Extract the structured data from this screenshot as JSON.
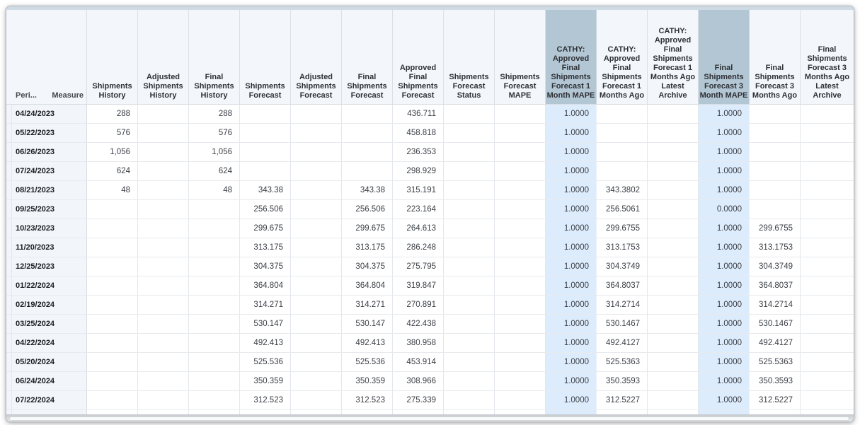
{
  "grid": {
    "corner": {
      "clipped_text": "/",
      "period_label": "Peri...",
      "measure_label": "Measure"
    },
    "columns": [
      {
        "id": "shipments-history",
        "label": "Shipments History",
        "highlight": false
      },
      {
        "id": "adjusted-shipments-history",
        "label": "Adjusted Shipments History",
        "highlight": false
      },
      {
        "id": "final-shipments-history",
        "label": "Final Shipments History",
        "highlight": false
      },
      {
        "id": "shipments-forecast",
        "label": "Shipments Forecast",
        "highlight": false
      },
      {
        "id": "adjusted-shipments-forecast",
        "label": "Adjusted Shipments Forecast",
        "highlight": false
      },
      {
        "id": "final-shipments-forecast",
        "label": "Final Shipments Forecast",
        "highlight": false
      },
      {
        "id": "approved-final-shipments-forecast",
        "label": "Approved Final Shipments Forecast",
        "highlight": false
      },
      {
        "id": "shipments-forecast-status",
        "label": "Shipments Forecast Status",
        "highlight": false
      },
      {
        "id": "shipments-forecast-mape",
        "label": "Shipments Forecast MAPE",
        "highlight": false
      },
      {
        "id": "cathy-approved-final-shipments-forecast-1-month-mape",
        "label": "CATHY: Approved Final Shipments Forecast 1 Month MAPE",
        "highlight": true
      },
      {
        "id": "cathy-approved-final-shipments-forecast-1-months-ago",
        "label": "CATHY: Approved Final Shipments Forecast 1 Months Ago",
        "highlight": false
      },
      {
        "id": "cathy-approved-final-shipments-forecast-1-months-ago-latest-archive",
        "label": "CATHY: Approved Final Shipments Forecast 1 Months Ago Latest Archive",
        "highlight": false
      },
      {
        "id": "final-shipments-forecast-3-month-mape",
        "label": "Final Shipments Forecast 3 Month MAPE",
        "highlight": true
      },
      {
        "id": "final-shipments-forecast-3-months-ago",
        "label": "Final Shipments Forecast 3 Months Ago",
        "highlight": false
      },
      {
        "id": "final-shipments-forecast-3-months-ago-latest-archive",
        "label": "Final Shipments Forecast 3 Months Ago Latest Archive",
        "highlight": false
      }
    ],
    "rows": [
      {
        "period": "04/24/2023",
        "cells": [
          "288",
          "",
          "288",
          "",
          "",
          "",
          "436.711",
          "",
          "",
          "1.0000",
          "",
          "",
          "1.0000",
          "",
          ""
        ]
      },
      {
        "period": "05/22/2023",
        "cells": [
          "576",
          "",
          "576",
          "",
          "",
          "",
          "458.818",
          "",
          "",
          "1.0000",
          "",
          "",
          "1.0000",
          "",
          ""
        ]
      },
      {
        "period": "06/26/2023",
        "cells": [
          "1,056",
          "",
          "1,056",
          "",
          "",
          "",
          "236.353",
          "",
          "",
          "1.0000",
          "",
          "",
          "1.0000",
          "",
          ""
        ]
      },
      {
        "period": "07/24/2023",
        "cells": [
          "624",
          "",
          "624",
          "",
          "",
          "",
          "298.929",
          "",
          "",
          "1.0000",
          "",
          "",
          "1.0000",
          "",
          ""
        ]
      },
      {
        "period": "08/21/2023",
        "cells": [
          "48",
          "",
          "48",
          "343.38",
          "",
          "343.38",
          "315.191",
          "",
          "",
          "1.0000",
          "343.3802",
          "",
          "1.0000",
          "",
          ""
        ]
      },
      {
        "period": "09/25/2023",
        "cells": [
          "",
          "",
          "",
          "256.506",
          "",
          "256.506",
          "223.164",
          "",
          "",
          "1.0000",
          "256.5061",
          "",
          "0.0000",
          "",
          ""
        ]
      },
      {
        "period": "10/23/2023",
        "cells": [
          "",
          "",
          "",
          "299.675",
          "",
          "299.675",
          "264.613",
          "",
          "",
          "1.0000",
          "299.6755",
          "",
          "1.0000",
          "299.6755",
          ""
        ]
      },
      {
        "period": "11/20/2023",
        "cells": [
          "",
          "",
          "",
          "313.175",
          "",
          "313.175",
          "286.248",
          "",
          "",
          "1.0000",
          "313.1753",
          "",
          "1.0000",
          "313.1753",
          ""
        ]
      },
      {
        "period": "12/25/2023",
        "cells": [
          "",
          "",
          "",
          "304.375",
          "",
          "304.375",
          "275.795",
          "",
          "",
          "1.0000",
          "304.3749",
          "",
          "1.0000",
          "304.3749",
          ""
        ]
      },
      {
        "period": "01/22/2024",
        "cells": [
          "",
          "",
          "",
          "364.804",
          "",
          "364.804",
          "319.847",
          "",
          "",
          "1.0000",
          "364.8037",
          "",
          "1.0000",
          "364.8037",
          ""
        ]
      },
      {
        "period": "02/19/2024",
        "cells": [
          "",
          "",
          "",
          "314.271",
          "",
          "314.271",
          "270.891",
          "",
          "",
          "1.0000",
          "314.2714",
          "",
          "1.0000",
          "314.2714",
          ""
        ]
      },
      {
        "period": "03/25/2024",
        "cells": [
          "",
          "",
          "",
          "530.147",
          "",
          "530.147",
          "422.438",
          "",
          "",
          "1.0000",
          "530.1467",
          "",
          "1.0000",
          "530.1467",
          ""
        ]
      },
      {
        "period": "04/22/2024",
        "cells": [
          "",
          "",
          "",
          "492.413",
          "",
          "492.413",
          "380.958",
          "",
          "",
          "1.0000",
          "492.4127",
          "",
          "1.0000",
          "492.4127",
          ""
        ]
      },
      {
        "period": "05/20/2024",
        "cells": [
          "",
          "",
          "",
          "525.536",
          "",
          "525.536",
          "453.914",
          "",
          "",
          "1.0000",
          "525.5363",
          "",
          "1.0000",
          "525.5363",
          ""
        ]
      },
      {
        "period": "06/24/2024",
        "cells": [
          "",
          "",
          "",
          "350.359",
          "",
          "350.359",
          "308.966",
          "",
          "",
          "1.0000",
          "350.3593",
          "",
          "1.0000",
          "350.3593",
          ""
        ]
      },
      {
        "period": "07/22/2024",
        "cells": [
          "",
          "",
          "",
          "312.523",
          "",
          "312.523",
          "275.339",
          "",
          "",
          "1.0000",
          "312.5227",
          "",
          "1.0000",
          "312.5227",
          ""
        ]
      }
    ],
    "colors": {
      "header_highlight": "#b3c6d4",
      "cell_highlight": "#ddecfc",
      "top_strip": "#cfdbe4",
      "header_bg": "#f3f6fa",
      "row_label_bg": "#f2f5f9",
      "grid_line": "#e3e7eb",
      "frame_border": "#b7bdc5"
    }
  }
}
